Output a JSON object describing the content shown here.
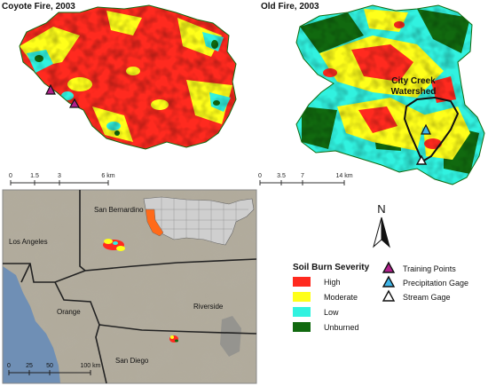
{
  "panels": {
    "coyote": {
      "title": "Coyote Fire, 2003"
    },
    "old": {
      "title": "Old Fire, 2003",
      "watershed_label_1": "City Creek",
      "watershed_label_2": "Watershed"
    }
  },
  "scalebars": {
    "coyote": {
      "ticks": [
        "0",
        "1.5",
        "3",
        "6 km"
      ]
    },
    "old": {
      "ticks": [
        "0",
        "3.5",
        "7",
        "14 km"
      ]
    },
    "region": {
      "ticks": [
        "0",
        "25",
        "50",
        "100 km"
      ]
    }
  },
  "region_map": {
    "counties": [
      "San Bernardino",
      "Los Angeles",
      "Riverside",
      "Orange",
      "San Diego"
    ]
  },
  "north_arrow": {
    "label": "N"
  },
  "legend": {
    "title": "Soil Burn Severity",
    "classes": [
      {
        "label": "High",
        "color": "#ff2a1f"
      },
      {
        "label": "Moderate",
        "color": "#ffff1a"
      },
      {
        "label": "Low",
        "color": "#31f2e0"
      },
      {
        "label": "Unburned",
        "color": "#11690f"
      }
    ],
    "symbols": [
      {
        "label": "Training Points",
        "color": "#b0208c",
        "icon": "triangle-icon"
      },
      {
        "label": "Precipitation Gage",
        "color": "#3fb5e8",
        "icon": "triangle-icon"
      },
      {
        "label": "Stream Gage",
        "color": "#ffffff",
        "icon": "triangle-icon"
      }
    ]
  }
}
